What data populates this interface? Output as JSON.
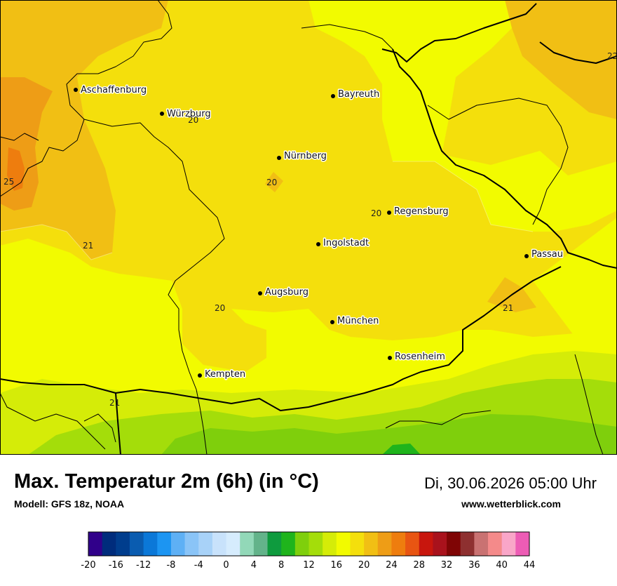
{
  "header": {
    "title": "Max. Temperatur 2m (6h) (in °C)",
    "model": "Modell: GFS 18z, NOAA",
    "datetime": "Di, 30.06.2026 05:00 Uhr",
    "website": "www.wetterblick.com"
  },
  "cities": [
    {
      "name": "Aschaffenburg"
    },
    {
      "name": "Würzburg"
    },
    {
      "name": "Bayreuth"
    },
    {
      "name": "Nürnberg"
    },
    {
      "name": "Regensburg"
    },
    {
      "name": "Ingolstadt"
    },
    {
      "name": "Passau"
    },
    {
      "name": "Augsburg"
    },
    {
      "name": "München"
    },
    {
      "name": "Rosenheim"
    },
    {
      "name": "Kempten"
    }
  ],
  "contour_labels": [
    "20",
    "25",
    "20",
    "21",
    "20",
    "20",
    "21",
    "21",
    "22"
  ],
  "legend": {
    "ticks": [
      "-20",
      "-16",
      "-12",
      "-8",
      "-4",
      "0",
      "4",
      "8",
      "12",
      "16",
      "20",
      "24",
      "28",
      "32",
      "36",
      "40",
      "44"
    ],
    "colors": [
      "#30008a",
      "#002c7c",
      "#003d8d",
      "#0a5cb0",
      "#0b78d8",
      "#1c95f2",
      "#5eb0f5",
      "#8ac4f7",
      "#a8d2f8",
      "#c8e2fb",
      "#d6ecfd",
      "#92d8b8",
      "#63b38a",
      "#0e9b3e",
      "#1fb41c",
      "#7fcf0c",
      "#a4dd0a",
      "#d5ec08",
      "#f2fb00",
      "#f4df0c",
      "#f1bf14",
      "#ee9d16",
      "#ee7d0e",
      "#e85512",
      "#c8160d",
      "#a9121c",
      "#7f0505",
      "#8e3030",
      "#c97272",
      "#f48a8a",
      "#f9a6c8",
      "#ed5cb5"
    ]
  }
}
